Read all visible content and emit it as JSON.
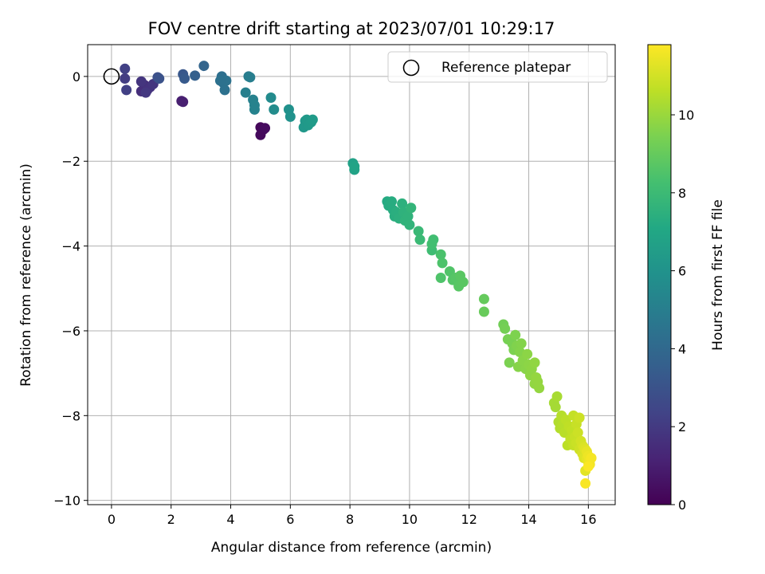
{
  "chart_data": {
    "type": "scatter",
    "title": "FOV centre drift starting at 2023/07/01 10:29:17",
    "xlabel": "Angular distance from reference (arcmin)",
    "ylabel": "Rotation from reference (arcmin)",
    "xlim": [
      -0.8,
      16.9
    ],
    "ylim": [
      -10.1,
      0.75
    ],
    "xticks": [
      0,
      2,
      4,
      6,
      8,
      10,
      12,
      14,
      16
    ],
    "yticks": [
      0,
      -2,
      -4,
      -6,
      -8,
      -10
    ],
    "grid": true,
    "colormap": "viridis",
    "colorbar": {
      "label": "Hours from first FF file",
      "range": [
        0,
        11.8
      ],
      "ticks": [
        0,
        2,
        4,
        6,
        8,
        10
      ]
    },
    "reference_marker": {
      "x": 0,
      "y": 0
    },
    "legend": {
      "position": "top-right",
      "entries": [
        "Reference platepar"
      ]
    },
    "points": [
      [
        5.0,
        -1.2,
        0.2
      ],
      [
        5.1,
        -1.25,
        0.3
      ],
      [
        5.0,
        -1.38,
        0.3
      ],
      [
        5.15,
        -1.22,
        0.35
      ],
      [
        2.35,
        -0.58,
        1.0
      ],
      [
        2.4,
        -0.6,
        1.05
      ],
      [
        1.0,
        -0.35,
        1.6
      ],
      [
        1.1,
        -0.2,
        1.6
      ],
      [
        1.2,
        -0.32,
        1.7
      ],
      [
        1.3,
        -0.25,
        1.75
      ],
      [
        1.0,
        -0.12,
        1.8
      ],
      [
        1.4,
        -0.18,
        1.85
      ],
      [
        1.15,
        -0.38,
        1.9
      ],
      [
        0.45,
        -0.05,
        2.1
      ],
      [
        0.5,
        -0.32,
        2.2
      ],
      [
        0.45,
        0.18,
        2.25
      ],
      [
        1.55,
        -0.02,
        2.9
      ],
      [
        1.6,
        -0.05,
        2.95
      ],
      [
        2.4,
        0.05,
        3.2
      ],
      [
        2.45,
        -0.05,
        3.3
      ],
      [
        2.8,
        0.02,
        3.6
      ],
      [
        3.1,
        0.25,
        3.8
      ],
      [
        3.7,
        0.0,
        4.3
      ],
      [
        3.75,
        -0.15,
        4.35
      ],
      [
        3.8,
        -0.32,
        4.4
      ],
      [
        3.85,
        -0.1,
        4.45
      ],
      [
        3.65,
        -0.1,
        4.4
      ],
      [
        4.6,
        0.0,
        4.9
      ],
      [
        4.65,
        -0.02,
        5.0
      ],
      [
        4.5,
        -0.38,
        5.05
      ],
      [
        4.75,
        -0.55,
        5.15
      ],
      [
        4.8,
        -0.78,
        5.2
      ],
      [
        4.8,
        -0.68,
        5.2
      ],
      [
        5.35,
        -0.5,
        5.6
      ],
      [
        5.45,
        -0.78,
        5.65
      ],
      [
        5.95,
        -0.78,
        5.9
      ],
      [
        6.0,
        -0.95,
        5.95
      ],
      [
        6.5,
        -1.05,
        6.2
      ],
      [
        6.45,
        -1.2,
        6.25
      ],
      [
        6.55,
        -1.02,
        6.3
      ],
      [
        6.6,
        -1.15,
        6.3
      ],
      [
        6.7,
        -1.08,
        6.35
      ],
      [
        6.75,
        -1.02,
        6.4
      ],
      [
        8.1,
        -2.05,
        6.7
      ],
      [
        8.15,
        -2.2,
        6.75
      ],
      [
        8.15,
        -2.12,
        6.8
      ],
      [
        9.25,
        -2.95,
        7.2
      ],
      [
        9.3,
        -3.05,
        7.25
      ],
      [
        9.4,
        -2.95,
        7.3
      ],
      [
        9.45,
        -3.15,
        7.3
      ],
      [
        9.5,
        -3.3,
        7.35
      ],
      [
        9.55,
        -3.2,
        7.4
      ],
      [
        9.65,
        -3.35,
        7.45
      ],
      [
        9.75,
        -3.0,
        7.5
      ],
      [
        9.8,
        -3.2,
        7.55
      ],
      [
        9.85,
        -3.4,
        7.6
      ],
      [
        9.95,
        -3.3,
        7.6
      ],
      [
        10.0,
        -3.5,
        7.65
      ],
      [
        10.05,
        -3.1,
        7.7
      ],
      [
        10.3,
        -3.65,
        7.9
      ],
      [
        10.35,
        -3.85,
        7.95
      ],
      [
        10.75,
        -4.1,
        8.1
      ],
      [
        10.8,
        -3.85,
        8.15
      ],
      [
        10.75,
        -3.95,
        8.2
      ],
      [
        11.05,
        -4.2,
        8.4
      ],
      [
        11.1,
        -4.4,
        8.45
      ],
      [
        11.05,
        -4.75,
        8.5
      ],
      [
        11.35,
        -4.6,
        8.55
      ],
      [
        11.45,
        -4.8,
        8.6
      ],
      [
        11.55,
        -4.75,
        8.65
      ],
      [
        11.65,
        -4.95,
        8.7
      ],
      [
        11.8,
        -4.85,
        8.75
      ],
      [
        11.7,
        -4.7,
        8.75
      ],
      [
        12.5,
        -5.25,
        9.0
      ],
      [
        12.5,
        -5.55,
        9.05
      ],
      [
        13.15,
        -5.85,
        9.25
      ],
      [
        13.2,
        -5.95,
        9.3
      ],
      [
        13.3,
        -6.2,
        9.35
      ],
      [
        13.45,
        -6.3,
        9.4
      ],
      [
        13.5,
        -6.45,
        9.45
      ],
      [
        13.35,
        -6.75,
        9.45
      ],
      [
        13.55,
        -6.1,
        9.5
      ],
      [
        13.6,
        -6.35,
        9.55
      ],
      [
        13.7,
        -6.5,
        9.6
      ],
      [
        13.75,
        -6.3,
        9.6
      ],
      [
        13.65,
        -6.85,
        9.65
      ],
      [
        13.8,
        -6.7,
        9.7
      ],
      [
        13.9,
        -6.9,
        9.7
      ],
      [
        13.95,
        -6.55,
        9.75
      ],
      [
        14.0,
        -6.8,
        9.75
      ],
      [
        14.05,
        -7.05,
        9.8
      ],
      [
        14.1,
        -6.9,
        9.8
      ],
      [
        14.2,
        -6.75,
        9.85
      ],
      [
        14.2,
        -7.25,
        9.85
      ],
      [
        14.3,
        -7.2,
        9.9
      ],
      [
        14.35,
        -7.35,
        9.9
      ],
      [
        14.25,
        -7.1,
        9.9
      ],
      [
        14.85,
        -7.7,
        10.2
      ],
      [
        14.9,
        -7.8,
        10.2
      ],
      [
        14.95,
        -7.55,
        10.25
      ],
      [
        15.0,
        -8.15,
        10.4
      ],
      [
        15.05,
        -8.3,
        10.45
      ],
      [
        15.1,
        -8.0,
        10.5
      ],
      [
        15.15,
        -8.2,
        10.5
      ],
      [
        15.2,
        -8.4,
        10.55
      ],
      [
        15.25,
        -8.1,
        10.6
      ],
      [
        15.3,
        -8.7,
        10.6
      ],
      [
        15.35,
        -8.25,
        10.65
      ],
      [
        15.4,
        -8.55,
        10.7
      ],
      [
        15.45,
        -8.35,
        10.7
      ],
      [
        15.5,
        -8.0,
        10.75
      ],
      [
        15.5,
        -8.7,
        10.75
      ],
      [
        15.55,
        -8.5,
        10.8
      ],
      [
        15.6,
        -8.2,
        10.8
      ],
      [
        15.6,
        -8.65,
        10.85
      ],
      [
        15.65,
        -8.4,
        10.9
      ],
      [
        15.7,
        -8.05,
        10.9
      ],
      [
        15.7,
        -8.8,
        10.95
      ],
      [
        15.75,
        -8.6,
        11.0
      ],
      [
        15.8,
        -8.7,
        11.05
      ],
      [
        15.8,
        -8.9,
        11.1
      ],
      [
        15.85,
        -8.75,
        11.15
      ],
      [
        15.85,
        -9.0,
        11.2
      ],
      [
        15.9,
        -8.8,
        11.25
      ],
      [
        15.9,
        -9.3,
        11.3
      ],
      [
        15.95,
        -9.0,
        11.35
      ],
      [
        15.95,
        -8.85,
        11.4
      ],
      [
        16.0,
        -9.1,
        11.45
      ],
      [
        16.0,
        -8.95,
        11.5
      ],
      [
        16.05,
        -9.05,
        11.55
      ],
      [
        16.05,
        -9.15,
        11.6
      ],
      [
        16.1,
        -9.0,
        11.65
      ],
      [
        15.9,
        -9.6,
        11.7
      ],
      [
        16.0,
        -9.2,
        11.75
      ]
    ]
  }
}
